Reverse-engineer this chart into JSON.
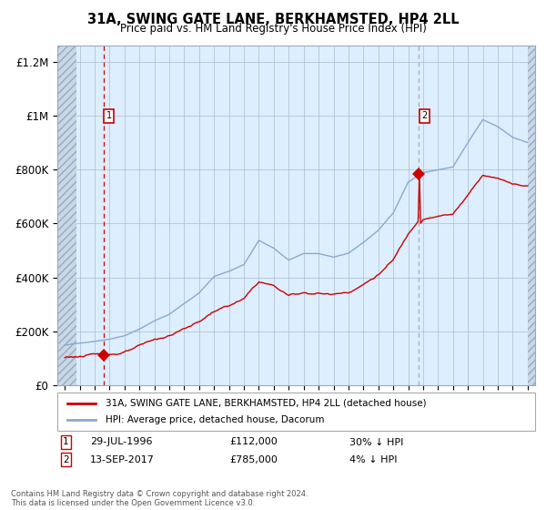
{
  "title": "31A, SWING GATE LANE, BERKHAMSTED, HP4 2LL",
  "subtitle": "Price paid vs. HM Land Registry's House Price Index (HPI)",
  "legend_line1": "31A, SWING GATE LANE, BERKHAMSTED, HP4 2LL (detached house)",
  "legend_line2": "HPI: Average price, detached house, Dacorum",
  "footnote": "Contains HM Land Registry data © Crown copyright and database right 2024.\nThis data is licensed under the Open Government Licence v3.0.",
  "transaction1_date": "29-JUL-1996",
  "transaction1_price": "£112,000",
  "transaction1_hpi": "30% ↓ HPI",
  "transaction2_date": "13-SEP-2017",
  "transaction2_price": "£785,000",
  "transaction2_hpi": "4% ↓ HPI",
  "transaction1_year": 1996.58,
  "transaction2_year": 2017.71,
  "transaction1_value": 112000,
  "transaction2_value": 785000,
  "price_color": "#cc0000",
  "hpi_color": "#88aacc",
  "vline1_color": "#cc0000",
  "vline2_color": "#aaaaaa",
  "bg_color": "#ddeeff",
  "grid_color": "#aabbcc",
  "ylim": [
    0,
    1260000
  ],
  "xlim": [
    1993.5,
    2025.5
  ],
  "yticks": [
    0,
    200000,
    400000,
    600000,
    800000,
    1000000,
    1200000
  ],
  "ylabels": [
    "£0",
    "£200K",
    "£400K",
    "£600K",
    "£800K",
    "£1M",
    "£1.2M"
  ]
}
